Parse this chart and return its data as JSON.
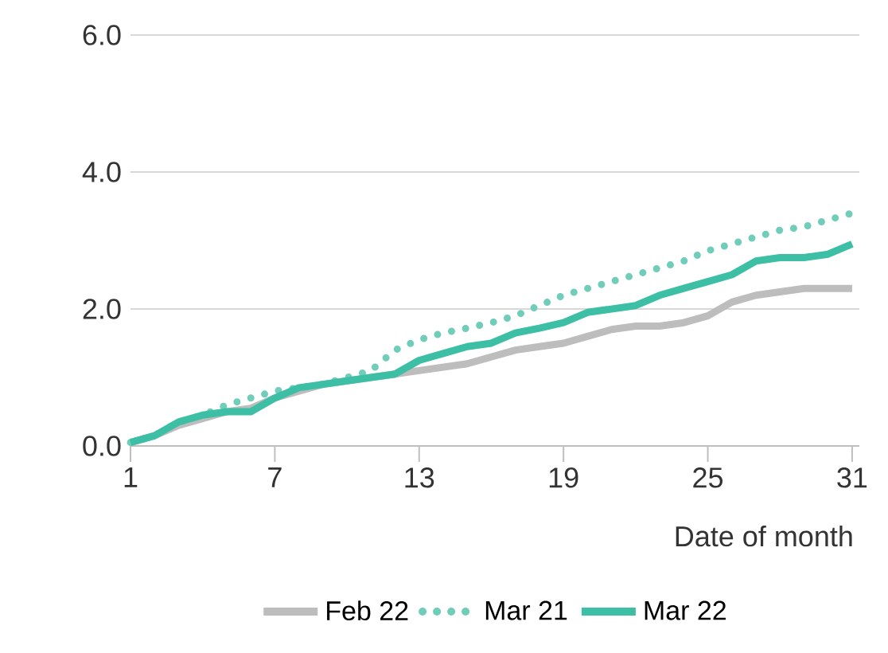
{
  "chart_data": {
    "type": "line",
    "xlabel": "Date of month",
    "x": [
      1,
      2,
      3,
      4,
      5,
      6,
      7,
      8,
      9,
      10,
      11,
      12,
      13,
      14,
      15,
      16,
      17,
      18,
      19,
      20,
      21,
      22,
      23,
      24,
      25,
      26,
      27,
      28,
      29,
      30,
      31
    ],
    "series": [
      {
        "name": "Feb 22",
        "color": "#bdbdbd",
        "line_style": "solid",
        "values": [
          0.05,
          0.15,
          0.3,
          0.4,
          0.5,
          0.55,
          0.7,
          0.8,
          0.9,
          0.95,
          1.0,
          1.05,
          1.1,
          1.15,
          1.2,
          1.3,
          1.4,
          1.45,
          1.5,
          1.6,
          1.7,
          1.75,
          1.75,
          1.8,
          1.9,
          2.1,
          2.2,
          2.25,
          2.3,
          2.3,
          2.3
        ]
      },
      {
        "name": "Mar 21",
        "color": "#6fcdb9",
        "line_style": "dotted",
        "values": [
          0.05,
          0.15,
          0.35,
          0.45,
          0.6,
          0.7,
          0.8,
          0.85,
          0.9,
          1.0,
          1.1,
          1.4,
          1.55,
          1.65,
          1.72,
          1.8,
          1.9,
          2.05,
          2.2,
          2.3,
          2.4,
          2.5,
          2.6,
          2.7,
          2.85,
          2.95,
          3.05,
          3.15,
          3.2,
          3.3,
          3.4
        ]
      },
      {
        "name": "Mar 22",
        "color": "#3dbfa5",
        "line_style": "solid",
        "values": [
          0.05,
          0.15,
          0.35,
          0.45,
          0.5,
          0.5,
          0.7,
          0.85,
          0.9,
          0.95,
          1.0,
          1.05,
          1.25,
          1.35,
          1.45,
          1.5,
          1.65,
          1.72,
          1.8,
          1.95,
          2.0,
          2.05,
          2.2,
          2.3,
          2.4,
          2.5,
          2.7,
          2.75,
          2.75,
          2.8,
          2.95
        ]
      }
    ],
    "xlim": [
      1,
      31.3
    ],
    "xticks": [
      1,
      7,
      13,
      19,
      25,
      31
    ],
    "ylim": [
      0,
      6
    ],
    "yticks": [
      {
        "value": 0,
        "label": "0.0"
      },
      {
        "value": 2,
        "label": "2.0"
      },
      {
        "value": 4,
        "label": "4.0"
      },
      {
        "value": 6,
        "label": "6.0"
      }
    ],
    "grid": "y",
    "legend": "bottom",
    "marker": "none"
  }
}
